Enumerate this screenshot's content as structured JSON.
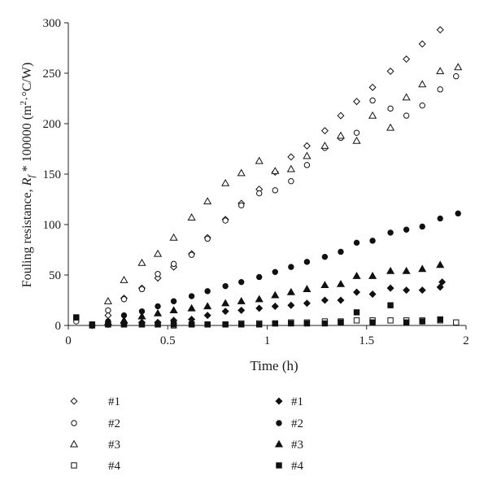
{
  "chart_data": {
    "type": "scatter",
    "xlabel": "Time (h)",
    "ylabel_prefix": "Fouling resistance, ",
    "ylabel_symbol": "R",
    "ylabel_subscript": "f",
    "ylabel_suffix": " * 100000 (m",
    "ylabel_sup": "2",
    "ylabel_end": "·°C/W)",
    "xlim": [
      0,
      2
    ],
    "ylim": [
      0,
      300
    ],
    "xticks": [
      0,
      0.5,
      1,
      1.5,
      2
    ],
    "xtick_labels": [
      "0",
      "0.5",
      "1",
      "1.5",
      "2"
    ],
    "yticks": [
      0,
      50,
      100,
      150,
      200,
      250,
      300
    ],
    "ytick_labels": [
      "0",
      "50",
      "100",
      "150",
      "200",
      "250",
      "300"
    ],
    "grid": false,
    "legend_position": "bottom",
    "series": [
      {
        "name": "#1",
        "marker": "diamond",
        "filled": false,
        "points": [
          [
            0.12,
            0
          ],
          [
            0.2,
            10
          ],
          [
            0.28,
            27
          ],
          [
            0.37,
            37
          ],
          [
            0.45,
            47
          ],
          [
            0.53,
            58
          ],
          [
            0.62,
            71
          ],
          [
            0.7,
            87
          ],
          [
            0.79,
            105
          ],
          [
            0.87,
            121
          ],
          [
            0.96,
            135
          ],
          [
            1.04,
            152
          ],
          [
            1.12,
            167
          ],
          [
            1.2,
            178
          ],
          [
            1.29,
            193
          ],
          [
            1.37,
            208
          ],
          [
            1.45,
            222
          ],
          [
            1.53,
            236
          ],
          [
            1.62,
            252
          ],
          [
            1.7,
            264
          ],
          [
            1.78,
            279
          ],
          [
            1.87,
            293
          ]
        ]
      },
      {
        "name": "#2",
        "marker": "circle",
        "filled": false,
        "points": [
          [
            0.04,
            4
          ],
          [
            0.12,
            1
          ],
          [
            0.2,
            15
          ],
          [
            0.28,
            26
          ],
          [
            0.37,
            36
          ],
          [
            0.45,
            51
          ],
          [
            0.53,
            61
          ],
          [
            0.62,
            70
          ],
          [
            0.7,
            86
          ],
          [
            0.79,
            104
          ],
          [
            0.87,
            119
          ],
          [
            0.96,
            131
          ],
          [
            1.04,
            134
          ],
          [
            1.12,
            143
          ],
          [
            1.2,
            159
          ],
          [
            1.29,
            176
          ],
          [
            1.37,
            186
          ],
          [
            1.45,
            191
          ],
          [
            1.53,
            223
          ],
          [
            1.62,
            215
          ],
          [
            1.7,
            208
          ],
          [
            1.78,
            218
          ],
          [
            1.87,
            234
          ],
          [
            1.95,
            247
          ]
        ]
      },
      {
        "name": "#3",
        "marker": "triangle",
        "filled": false,
        "points": [
          [
            0.2,
            24
          ],
          [
            0.28,
            45
          ],
          [
            0.37,
            62
          ],
          [
            0.45,
            71
          ],
          [
            0.53,
            87
          ],
          [
            0.62,
            107
          ],
          [
            0.7,
            123
          ],
          [
            0.79,
            141
          ],
          [
            0.87,
            151
          ],
          [
            0.96,
            163
          ],
          [
            1.04,
            153
          ],
          [
            1.12,
            155
          ],
          [
            1.2,
            168
          ],
          [
            1.29,
            178
          ],
          [
            1.37,
            188
          ],
          [
            1.45,
            183
          ],
          [
            1.53,
            208
          ],
          [
            1.62,
            196
          ],
          [
            1.7,
            226
          ],
          [
            1.78,
            239
          ],
          [
            1.87,
            252
          ],
          [
            1.96,
            256
          ]
        ]
      },
      {
        "name": "#4",
        "marker": "square",
        "filled": false,
        "points": [
          [
            0.04,
            8
          ],
          [
            0.12,
            1
          ],
          [
            0.2,
            1
          ],
          [
            0.28,
            1
          ],
          [
            0.37,
            1
          ],
          [
            0.45,
            1
          ],
          [
            0.53,
            0
          ],
          [
            0.62,
            1
          ],
          [
            0.7,
            1
          ],
          [
            0.79,
            1
          ],
          [
            0.87,
            2
          ],
          [
            0.96,
            2
          ],
          [
            1.04,
            2
          ],
          [
            1.12,
            3
          ],
          [
            1.2,
            3
          ],
          [
            1.29,
            4
          ],
          [
            1.37,
            4
          ],
          [
            1.45,
            5
          ],
          [
            1.53,
            5
          ],
          [
            1.62,
            5
          ],
          [
            1.7,
            5
          ],
          [
            1.78,
            5
          ],
          [
            1.87,
            5
          ],
          [
            1.95,
            3
          ]
        ]
      },
      {
        "name": "#1",
        "marker": "diamond",
        "filled": true,
        "points": [
          [
            0.12,
            0
          ],
          [
            0.2,
            1
          ],
          [
            0.28,
            2
          ],
          [
            0.37,
            3
          ],
          [
            0.45,
            3
          ],
          [
            0.53,
            5
          ],
          [
            0.62,
            6
          ],
          [
            0.7,
            10
          ],
          [
            0.79,
            14
          ],
          [
            0.87,
            15
          ],
          [
            0.96,
            17
          ],
          [
            1.04,
            19
          ],
          [
            1.12,
            20
          ],
          [
            1.2,
            22
          ],
          [
            1.29,
            25
          ],
          [
            1.37,
            25
          ],
          [
            1.45,
            33
          ],
          [
            1.53,
            31
          ],
          [
            1.62,
            37
          ],
          [
            1.7,
            35
          ],
          [
            1.78,
            35
          ],
          [
            1.87,
            38
          ],
          [
            1.88,
            43
          ]
        ]
      },
      {
        "name": "#2",
        "marker": "circle",
        "filled": true,
        "points": [
          [
            0.12,
            1
          ],
          [
            0.2,
            4
          ],
          [
            0.28,
            10
          ],
          [
            0.37,
            14
          ],
          [
            0.45,
            19
          ],
          [
            0.53,
            24
          ],
          [
            0.62,
            29
          ],
          [
            0.7,
            34
          ],
          [
            0.79,
            39
          ],
          [
            0.87,
            43
          ],
          [
            0.96,
            48
          ],
          [
            1.04,
            53
          ],
          [
            1.12,
            58
          ],
          [
            1.2,
            63
          ],
          [
            1.29,
            68
          ],
          [
            1.37,
            73
          ],
          [
            1.45,
            82
          ],
          [
            1.53,
            84
          ],
          [
            1.62,
            92
          ],
          [
            1.7,
            95
          ],
          [
            1.78,
            98
          ],
          [
            1.87,
            106
          ],
          [
            1.96,
            111
          ]
        ]
      },
      {
        "name": "#3",
        "marker": "triangle",
        "filled": true,
        "points": [
          [
            0.2,
            3
          ],
          [
            0.28,
            5
          ],
          [
            0.37,
            9
          ],
          [
            0.45,
            12
          ],
          [
            0.53,
            15
          ],
          [
            0.62,
            17
          ],
          [
            0.7,
            19
          ],
          [
            0.79,
            22
          ],
          [
            0.87,
            24
          ],
          [
            0.96,
            26
          ],
          [
            1.04,
            30
          ],
          [
            1.12,
            33
          ],
          [
            1.2,
            36
          ],
          [
            1.29,
            40
          ],
          [
            1.37,
            41
          ],
          [
            1.45,
            49
          ],
          [
            1.53,
            49
          ],
          [
            1.62,
            54
          ],
          [
            1.7,
            54
          ],
          [
            1.78,
            56
          ],
          [
            1.87,
            60
          ]
        ]
      },
      {
        "name": "#4",
        "marker": "square",
        "filled": true,
        "points": [
          [
            0.04,
            8
          ],
          [
            0.12,
            0
          ],
          [
            0.2,
            1
          ],
          [
            0.28,
            1
          ],
          [
            0.37,
            1
          ],
          [
            0.45,
            1
          ],
          [
            0.53,
            1
          ],
          [
            0.62,
            1
          ],
          [
            0.7,
            1
          ],
          [
            0.79,
            1
          ],
          [
            0.87,
            1
          ],
          [
            0.96,
            1
          ],
          [
            1.04,
            2
          ],
          [
            1.12,
            2
          ],
          [
            1.2,
            2
          ],
          [
            1.29,
            2
          ],
          [
            1.37,
            3
          ],
          [
            1.45,
            13
          ],
          [
            1.53,
            3
          ],
          [
            1.62,
            20
          ],
          [
            1.7,
            3
          ],
          [
            1.78,
            4
          ],
          [
            1.87,
            6
          ]
        ]
      }
    ]
  }
}
